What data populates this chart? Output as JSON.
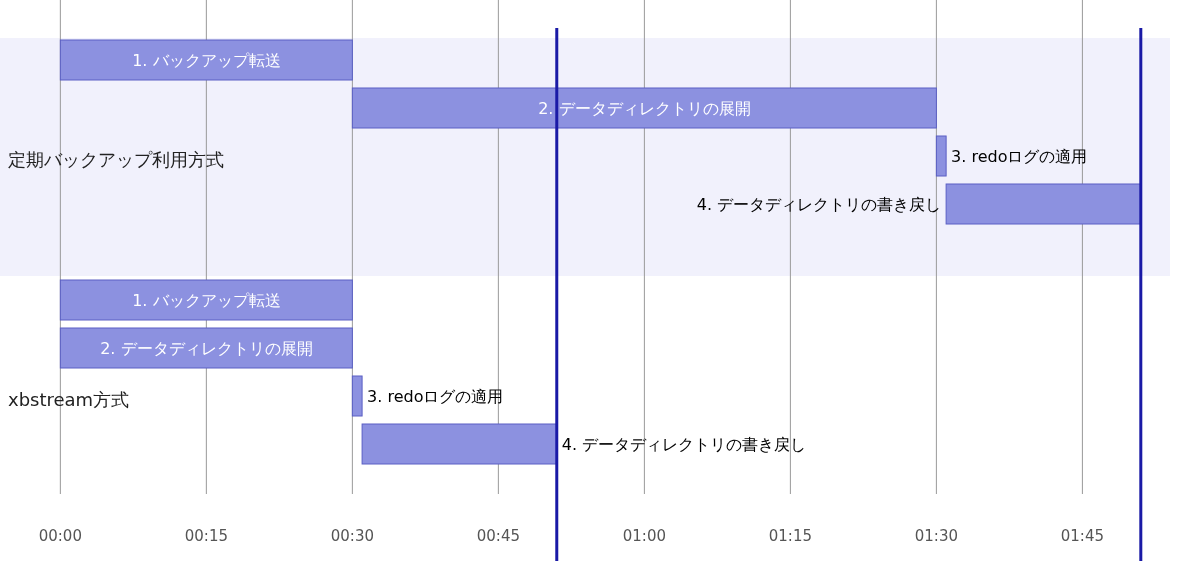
{
  "chart_data": {
    "type": "bar",
    "orientation": "horizontal",
    "categories": [
      "定期バックアップ利用方式",
      "xbstream方式"
    ],
    "series": [
      {
        "name": "1. バックアップ転送",
        "color": "#8c91e0",
        "base": [
          0,
          0
        ],
        "values": [
          30,
          30
        ]
      },
      {
        "name": "2. データディレクトリの展開",
        "color": "#8c91e0",
        "base": [
          30,
          0
        ],
        "values": [
          60,
          30
        ]
      },
      {
        "name": "3. redoログの適用",
        "color": "#8c91e0",
        "base": [
          90,
          30
        ],
        "values": [
          1,
          1
        ]
      },
      {
        "name": "4. データディレクトリの書き戻し",
        "color": "#8c91e0",
        "base": [
          91,
          31
        ],
        "values": [
          20,
          20
        ]
      }
    ],
    "xlim": [
      -6.2,
      114
    ],
    "xticks": [
      {
        "value": 0,
        "label": "00:00"
      },
      {
        "value": 15,
        "label": "00:15"
      },
      {
        "value": 30,
        "label": "00:30"
      },
      {
        "value": 45,
        "label": "00:45"
      },
      {
        "value": 60,
        "label": "01:00"
      },
      {
        "value": 75,
        "label": "01:15"
      },
      {
        "value": 90,
        "label": "01:30"
      },
      {
        "value": 105,
        "label": "01:45"
      }
    ],
    "grid": "x",
    "bands": [
      {
        "axis": "y",
        "from": "定期バックアップ利用方式",
        "to": "定期バックアップ利用方式",
        "color": "#f1f1fc"
      }
    ],
    "ref_lines": [
      {
        "axis": "x",
        "value": 51,
        "color": "#1a1aa6"
      },
      {
        "axis": "x",
        "value": 111,
        "color": "#1a1aa6"
      }
    ]
  }
}
